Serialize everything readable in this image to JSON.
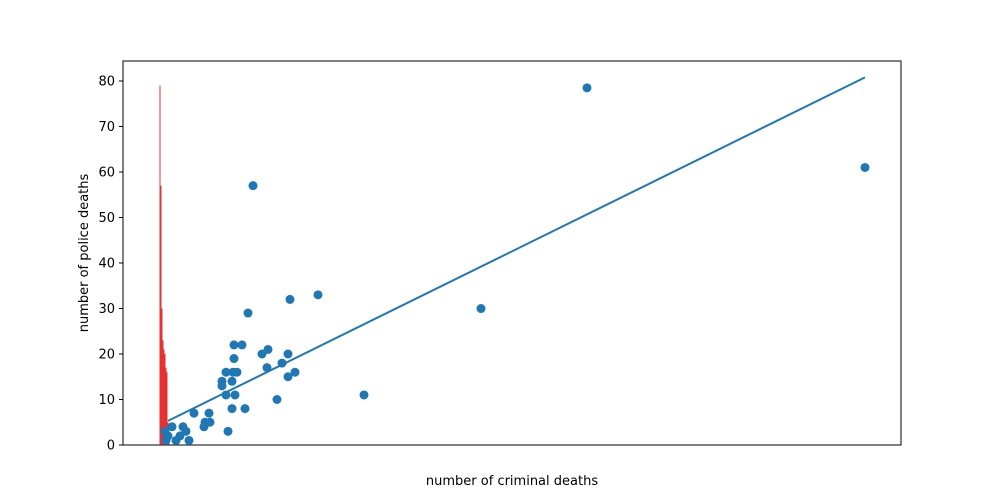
{
  "chart_data": {
    "type": "scatter",
    "xlabel": "number of criminal deaths",
    "ylabel": "number of police deaths",
    "x": [
      427,
      705,
      321,
      204,
      158,
      130,
      93,
      88,
      74,
      82,
      74,
      102,
      108,
      128,
      122,
      107,
      135,
      128,
      66,
      73,
      77,
      62,
      72,
      62,
      66,
      75,
      117,
      72,
      85,
      49,
      34,
      45,
      50,
      44,
      68,
      23,
      26,
      12,
      20,
      29,
      16,
      6,
      8,
      5
    ],
    "y": [
      78.5,
      61,
      30,
      11,
      33,
      32,
      57,
      29,
      22,
      22,
      19,
      20,
      21,
      20,
      18,
      17,
      16,
      15,
      16,
      16,
      16,
      14,
      14,
      13,
      11,
      11,
      10,
      8,
      8,
      7,
      7,
      5,
      5,
      4,
      3,
      4,
      3,
      4,
      2,
      1,
      1,
      1,
      2,
      3
    ],
    "color": "#1f77b4",
    "fit": {
      "x": [
        8,
        705
      ],
      "y": [
        5.3,
        80.8
      ],
      "color": "#1f77b4"
    },
    "bars": {
      "x": [
        0,
        1,
        2,
        3,
        4,
        5,
        6,
        7,
        8,
        9
      ],
      "values": [
        79,
        57,
        30,
        23,
        21,
        20,
        17,
        16,
        5,
        3
      ],
      "color": "#e00000"
    },
    "xlim": [
      -37,
      741
    ],
    "ylim": [
      0,
      84.4
    ],
    "yticks": [
      0,
      10,
      20,
      30,
      40,
      50,
      60,
      70,
      80
    ]
  }
}
